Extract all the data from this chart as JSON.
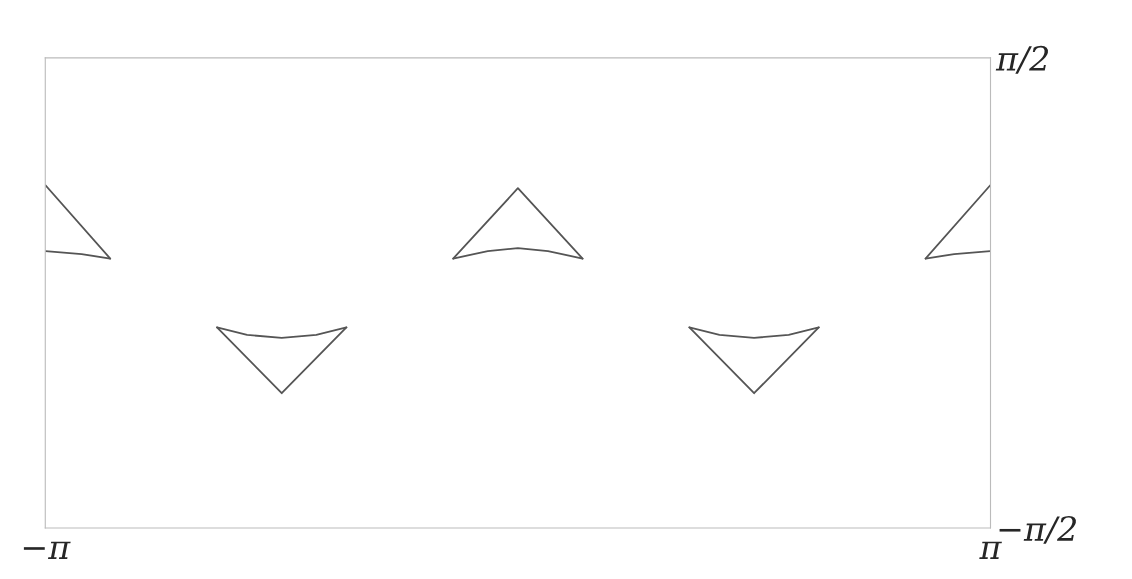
{
  "chart_data": {
    "type": "line",
    "xlim": [
      -3.1416,
      3.1416
    ],
    "ylim": [
      -1.5708,
      1.5708
    ],
    "xticks": [
      {
        "value": -3.1416,
        "label": "−π"
      },
      {
        "value": 3.1416,
        "label": "π"
      }
    ],
    "yticks": [
      {
        "value": -1.5708,
        "label": "−π/2"
      },
      {
        "value": 1.5708,
        "label": "π/2"
      }
    ],
    "grid": false,
    "legend": false,
    "marker": "none",
    "line_style": "solid",
    "series": [
      {
        "color": "#555555",
        "x": [
          -0.43,
          0,
          0.43
        ],
        "values": [
          0.23,
          0.7,
          0.23
        ]
      },
      {
        "color": "#555555",
        "x": [
          -0.43,
          -0.2,
          0,
          0.2,
          0.43
        ],
        "values": [
          0.23,
          0.28,
          0.3,
          0.28,
          0.23
        ]
      },
      {
        "color": "#555555",
        "x": [
          -2.0,
          -1.57,
          -1.14
        ],
        "values": [
          -0.23,
          -0.67,
          -0.23
        ]
      },
      {
        "color": "#555555",
        "x": [
          -2.0,
          -1.8,
          -1.57,
          -1.34,
          -1.14
        ],
        "values": [
          -0.23,
          -0.28,
          -0.3,
          -0.28,
          -0.23
        ]
      },
      {
        "color": "#555555",
        "x": [
          1.14,
          1.57,
          2.0
        ],
        "values": [
          -0.23,
          -0.67,
          -0.23
        ]
      },
      {
        "color": "#555555",
        "x": [
          1.14,
          1.34,
          1.57,
          1.8,
          2.0
        ],
        "values": [
          -0.23,
          -0.28,
          -0.3,
          -0.28,
          -0.23
        ]
      },
      {
        "color": "#555555",
        "x": [
          -3.14,
          -2.71
        ],
        "values": [
          0.72,
          0.23
        ]
      },
      {
        "color": "#555555",
        "x": [
          -3.14,
          -2.9,
          -2.71
        ],
        "values": [
          0.28,
          0.26,
          0.23
        ]
      },
      {
        "color": "#555555",
        "x": [
          2.71,
          3.14
        ],
        "values": [
          0.23,
          0.72
        ]
      },
      {
        "color": "#555555",
        "x": [
          2.71,
          2.9,
          3.14
        ],
        "values": [
          0.23,
          0.26,
          0.28
        ]
      }
    ]
  }
}
